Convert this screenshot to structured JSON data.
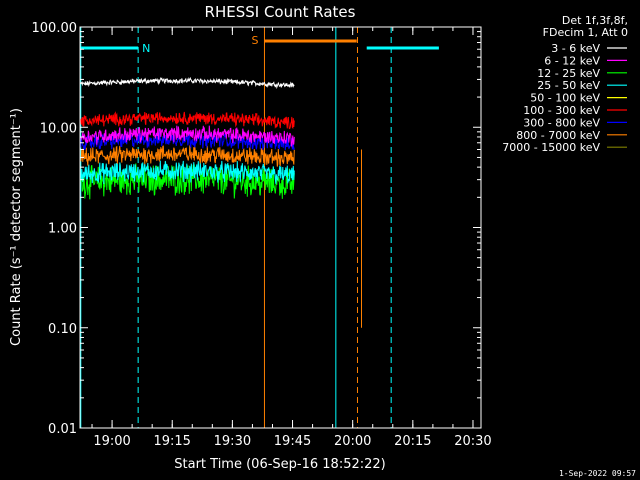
{
  "chart_data": {
    "type": "line",
    "title": "RHESSI Count Rates",
    "xlabel": "Start Time (06-Sep-16 18:52:22)",
    "ylabel": "Count Rate (s⁻¹ detector segment⁻¹)",
    "yscale": "log",
    "ylim": [
      0.01,
      100
    ],
    "xlim_minutes_after_1852": [
      0,
      100
    ],
    "x_tick_labels": [
      "19:00",
      "19:15",
      "19:30",
      "19:45",
      "20:00",
      "20:15",
      "20:30"
    ],
    "x_tick_minutes": [
      8,
      23,
      38,
      53,
      68,
      83,
      98
    ],
    "y_tick_labels": [
      "100.00",
      "10.00",
      "1.00",
      "0.10",
      "0.01"
    ],
    "y_tick_values": [
      100,
      10,
      1,
      0.1,
      0.01
    ],
    "legend_header": [
      "Det 1f,3f,8f,",
      "FDecim 1, Att 0"
    ],
    "legend_position": "top-right outside",
    "footer_timestamp": "1-Sep-2022 09:57",
    "data_gap_minutes": [
      [
        53.5,
        93.5
      ]
    ],
    "series": [
      {
        "name": "3 - 6 keV",
        "color": "#ffffff",
        "level": 27,
        "noise": 0.02
      },
      {
        "name": "6 - 12 keV",
        "color": "#ff00ff",
        "level": 8.0,
        "noise": 0.06
      },
      {
        "name": "12 - 25 keV",
        "color": "#00ff00",
        "level": 2.8,
        "noise": 0.12
      },
      {
        "name": "25 - 50 keV",
        "color": "#00ffff",
        "level": 3.4,
        "noise": 0.08
      },
      {
        "name": "50 - 100 keV",
        "color": "#ffff00",
        "level": null,
        "noise": 0
      },
      {
        "name": "100 - 300 keV",
        "color": "#ff0000",
        "level": 11.5,
        "noise": 0.05
      },
      {
        "name": "300 - 800 keV",
        "color": "#0000ff",
        "level": 7.0,
        "noise": 0.06
      },
      {
        "name": "800 - 7000 keV",
        "color": "#ff8000",
        "level": 5.0,
        "noise": 0.07
      },
      {
        "name": "7000 - 15000 keV",
        "color": "#808000",
        "level": null,
        "noise": 0
      }
    ],
    "markers": {
      "night": {
        "label": "N",
        "color": "#00ffff",
        "intervals": [
          [
            0,
            14.5
          ],
          [
            71.5,
            89.5
          ]
        ]
      },
      "saa": {
        "label": "S",
        "color": "#ff8000",
        "intervals": [
          [
            46,
            69
          ]
        ]
      },
      "vertical_lines": [
        {
          "x": 0.2,
          "color": "#00ffff",
          "style": "solid"
        },
        {
          "x": 14.5,
          "color": "#00ffff",
          "style": "dashed"
        },
        {
          "x": 46,
          "color": "#ff8000",
          "style": "solid"
        },
        {
          "x": 63.8,
          "color": "#00ffff",
          "style": "solid"
        },
        {
          "x": 69.2,
          "color": "#ff8000",
          "style": "dashed"
        },
        {
          "x": 77.6,
          "color": "#00ffff",
          "style": "dashed"
        }
      ],
      "orange_spike": {
        "x": 70.2,
        "ymin": 0.1
      }
    }
  }
}
